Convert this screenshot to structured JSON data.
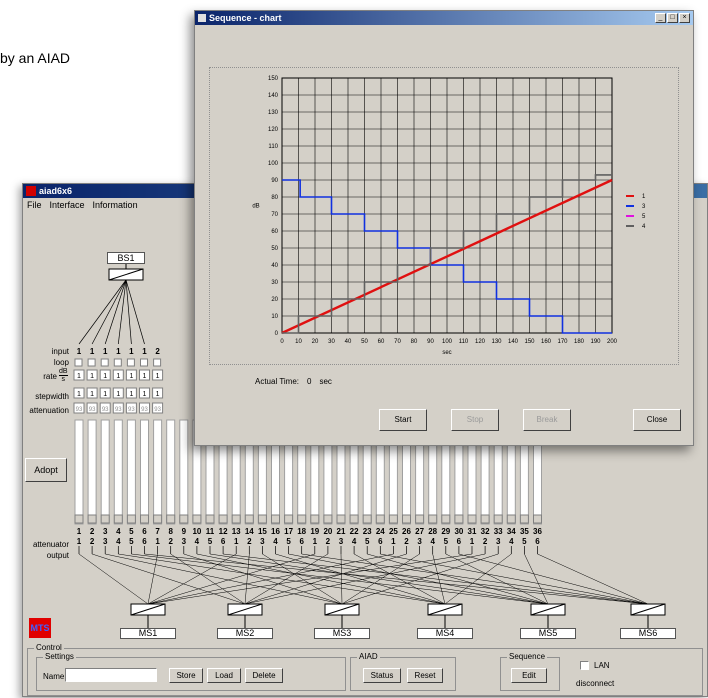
{
  "background_text": "by an AIAD",
  "main_window": {
    "title": "aiad6x6",
    "menu": [
      "File",
      "Interface",
      "Information"
    ],
    "bs_label": "BS1",
    "row_labels": {
      "input": "input",
      "loop": "loop",
      "rate": "rate",
      "rate_unit_top": "dB",
      "rate_unit_bottom": "s",
      "stepwidth": "stepwidth",
      "attenuation": "attenuation",
      "attenuator": "attenuator",
      "output": "output"
    },
    "input_values": [
      "1",
      "1",
      "1",
      "1",
      "1",
      "1",
      "2"
    ],
    "rate_values": [
      "1",
      "1",
      "1",
      "1",
      "1",
      "1",
      "1"
    ],
    "stepwidth_values": [
      "1",
      "1",
      "1",
      "1",
      "1",
      "1",
      "1"
    ],
    "attenuation_values": [
      "93",
      "93",
      "93",
      "93",
      "93",
      "93",
      "93"
    ],
    "adopt_label": "Adopt",
    "attenuator_numbers": [
      "1",
      "2",
      "3",
      "4",
      "5",
      "6",
      "7",
      "8",
      "9",
      "10",
      "11",
      "12",
      "13",
      "14",
      "15",
      "16",
      "17",
      "18",
      "19",
      "20",
      "21",
      "22",
      "23",
      "24",
      "25",
      "26",
      "27",
      "28",
      "29",
      "30",
      "31",
      "32",
      "33",
      "34",
      "35",
      "36"
    ],
    "output_numbers": [
      "1",
      "2",
      "3",
      "4",
      "5",
      "6",
      "1",
      "2",
      "3",
      "4",
      "5",
      "6",
      "1",
      "2",
      "3",
      "4",
      "5",
      "6",
      "1",
      "2",
      "3",
      "4",
      "5",
      "6",
      "1",
      "2",
      "3",
      "4",
      "5",
      "6",
      "1",
      "2",
      "3",
      "4",
      "5",
      "6"
    ],
    "ms_labels": [
      "MS1",
      "MS2",
      "MS3",
      "MS4",
      "MS5",
      "MS6"
    ],
    "logo_text": "MTS",
    "control": {
      "title": "Control",
      "settings_title": "Settings",
      "name_label": "Name",
      "name_value": "",
      "store": "Store",
      "load": "Load",
      "delete": "Delete",
      "aiad_title": "AIAD",
      "status": "Status",
      "reset": "Reset",
      "sequence_title": "Sequence",
      "edit": "Edit",
      "lan_label": "LAN",
      "disconnect": "disconnect"
    }
  },
  "chart_window": {
    "title": "Sequence - chart",
    "actual_time_label": "Actual Time:",
    "actual_time_value": "0",
    "actual_time_unit": "sec",
    "buttons": {
      "start": "Start",
      "stop": "Stop",
      "break": "Break",
      "close": "Close"
    }
  },
  "chart_data": {
    "type": "line",
    "xlabel": "sec",
    "ylabel": "dB",
    "xlim": [
      0,
      200
    ],
    "ylim": [
      0,
      150
    ],
    "xticks": [
      0,
      10,
      20,
      30,
      40,
      50,
      60,
      70,
      80,
      90,
      100,
      110,
      120,
      130,
      140,
      150,
      160,
      170,
      180,
      190,
      200
    ],
    "yticks": [
      0,
      10,
      20,
      30,
      40,
      50,
      60,
      70,
      80,
      90,
      100,
      110,
      120,
      130,
      140,
      150
    ],
    "grid": true,
    "legend_position": "right",
    "series": [
      {
        "name": "1",
        "color": "#e01010",
        "x": [
          0,
          200
        ],
        "y": [
          0,
          90
        ]
      },
      {
        "name": "3",
        "color": "#1030e0",
        "x": [
          0,
          11,
          11,
          30,
          30,
          50,
          50,
          70,
          70,
          90,
          90,
          110,
          110,
          130,
          130,
          150,
          150,
          170,
          170,
          190,
          190,
          200
        ],
        "y": [
          90,
          90,
          80,
          80,
          70,
          70,
          60,
          60,
          50,
          50,
          40,
          40,
          30,
          30,
          20,
          20,
          10,
          10,
          0,
          0,
          0,
          0
        ]
      },
      {
        "name": "5",
        "color": "#e010e0",
        "x": [],
        "y": []
      },
      {
        "name": "4",
        "color": "#606060",
        "x": [
          0,
          10,
          10,
          30,
          30,
          50,
          50,
          70,
          70,
          90,
          90,
          110,
          110,
          130,
          130,
          150,
          150,
          170,
          170,
          190,
          190,
          200
        ],
        "y": [
          0,
          0,
          10,
          10,
          20,
          20,
          30,
          30,
          40,
          40,
          50,
          50,
          60,
          60,
          70,
          70,
          80,
          80,
          90,
          90,
          93,
          93
        ]
      }
    ]
  },
  "colors": {
    "dialog": "#d4d0c8",
    "title_bar": "#0a246a",
    "accent_red": "#e00000"
  }
}
